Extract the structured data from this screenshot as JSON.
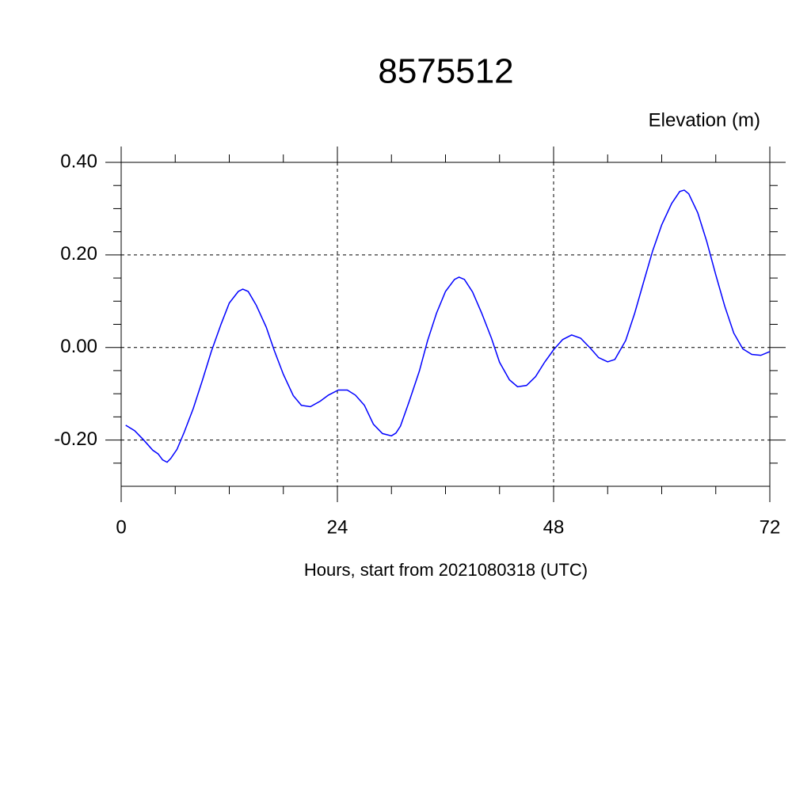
{
  "chart_data": {
    "type": "line",
    "title": "8575512",
    "ylabel": "Elevation (m)",
    "xlabel": "Hours, start from 2021080318 (UTC)",
    "x": [
      0.5,
      1.5,
      2.5,
      3.5,
      4.1,
      4.6,
      5.1,
      5.5,
      6.2,
      7,
      8,
      9,
      10,
      11.1,
      12,
      13,
      13.5,
      14.1,
      15,
      16.1,
      17,
      18,
      19.1,
      20,
      21,
      22.1,
      23,
      24.1,
      25.1,
      26,
      27,
      28,
      29,
      30,
      30.5,
      31,
      32,
      33.1,
      34,
      35,
      36,
      37,
      37.5,
      38.1,
      39,
      40,
      41.1,
      42,
      43.1,
      44,
      45,
      46,
      47,
      48,
      49,
      50,
      51,
      52.1,
      53,
      54,
      54.8,
      56,
      57,
      58,
      59,
      60,
      61.1,
      62,
      62.5,
      63,
      64,
      65,
      66,
      67,
      68,
      69,
      70,
      71,
      72
    ],
    "series": [
      {
        "name": "Elevation",
        "color": "#0000ff",
        "values": [
          -0.168,
          -0.18,
          -0.2,
          -0.222,
          -0.23,
          -0.243,
          -0.248,
          -0.24,
          -0.22,
          -0.183,
          -0.132,
          -0.072,
          -0.009,
          0.051,
          0.096,
          0.121,
          0.126,
          0.121,
          0.091,
          0.044,
          -0.007,
          -0.058,
          -0.104,
          -0.125,
          -0.128,
          -0.116,
          -0.103,
          -0.092,
          -0.092,
          -0.103,
          -0.125,
          -0.166,
          -0.186,
          -0.191,
          -0.185,
          -0.17,
          -0.115,
          -0.051,
          0.014,
          0.074,
          0.121,
          0.147,
          0.152,
          0.147,
          0.12,
          0.075,
          0.02,
          -0.032,
          -0.07,
          -0.085,
          -0.082,
          -0.063,
          -0.032,
          -0.005,
          0.017,
          0.027,
          0.02,
          -0.002,
          -0.022,
          -0.031,
          -0.026,
          0.015,
          0.074,
          0.142,
          0.209,
          0.265,
          0.311,
          0.337,
          0.34,
          0.332,
          0.291,
          0.229,
          0.157,
          0.089,
          0.031,
          -0.003,
          -0.015,
          -0.017,
          -0.009
        ]
      }
    ],
    "xlim": [
      0,
      72
    ],
    "ylim": [
      -0.3,
      0.4
    ],
    "xticks": [
      0,
      24,
      48,
      72
    ],
    "yticks": [
      {
        "value": 0.4,
        "label": "0.40"
      },
      {
        "value": 0.2,
        "label": "0.20"
      },
      {
        "value": 0,
        "label": "0.00"
      },
      {
        "value": -0.2,
        "label": "-0.20"
      }
    ],
    "xminorticks": [
      6,
      12,
      18,
      30,
      36,
      42,
      54,
      60,
      66
    ],
    "yminorticks": [
      -0.25,
      -0.15,
      -0.1,
      -0.05,
      0.05,
      0.1,
      0.15,
      0.25,
      0.3,
      0.35
    ],
    "grid": true
  }
}
